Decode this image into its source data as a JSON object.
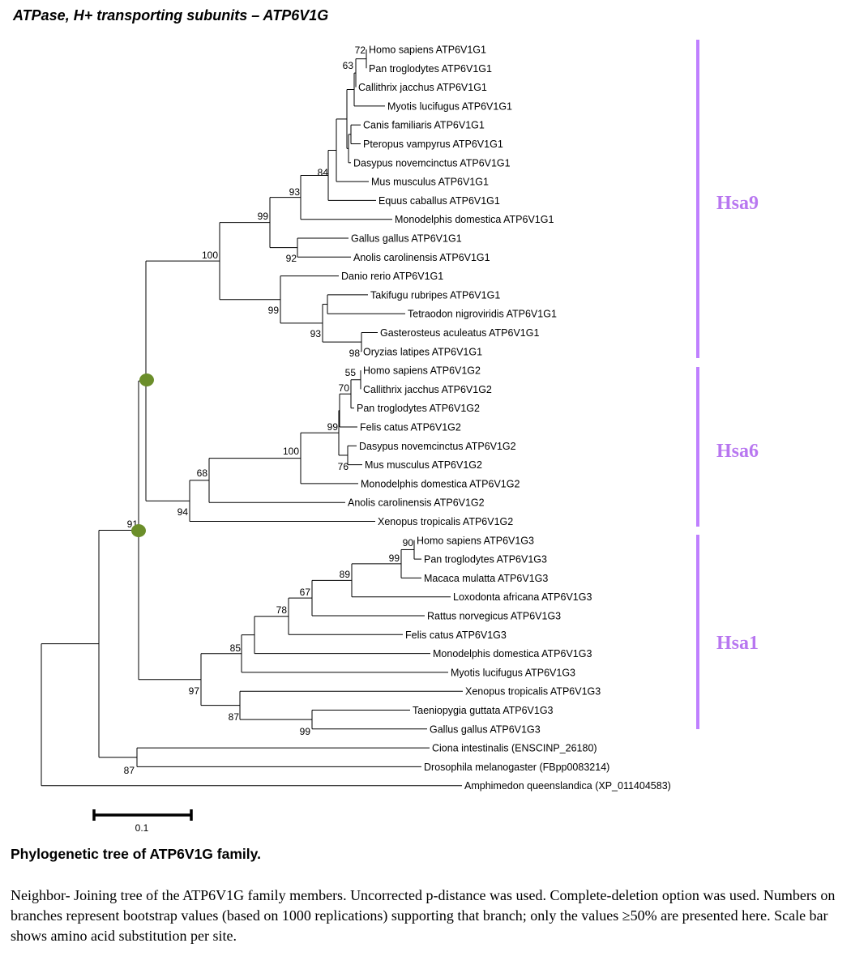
{
  "title": "ATPase, H+ transporting subunits – ATP6V1G",
  "colors": {
    "clade_bar": "#bf80ff",
    "clade_label": "#b877f0",
    "node_marker": "#6b8e2a",
    "line": "#000000"
  },
  "tree": {
    "taxa": [
      "Homo sapiens ATP6V1G1",
      "Pan troglodytes ATP6V1G1",
      "Callithrix jacchus ATP6V1G1",
      "Myotis lucifugus ATP6V1G1",
      "Canis familiaris ATP6V1G1",
      "Pteropus vampyrus ATP6V1G1",
      "Dasypus novemcinctus ATP6V1G1",
      "Mus musculus ATP6V1G1",
      "Equus caballus ATP6V1G1",
      "Monodelphis domestica ATP6V1G1",
      "Gallus gallus ATP6V1G1",
      "Anolis carolinensis ATP6V1G1",
      "Danio rerio ATP6V1G1",
      "Takifugu rubripes ATP6V1G1",
      "Tetraodon nigroviridis ATP6V1G1",
      "Gasterosteus aculeatus ATP6V1G1",
      "Oryzias latipes ATP6V1G1",
      "Homo sapiens ATP6V1G2",
      "Callithrix jacchus ATP6V1G2",
      "Pan troglodytes ATP6V1G2",
      "Felis catus ATP6V1G2",
      "Dasypus novemcinctus ATP6V1G2",
      "Mus musculus ATP6V1G2",
      "Monodelphis domestica ATP6V1G2",
      "Anolis carolinensis ATP6V1G2",
      "Xenopus tropicalis ATP6V1G2",
      "Homo sapiens ATP6V1G3",
      "Pan troglodytes ATP6V1G3",
      "Macaca mulatta ATP6V1G3",
      "Loxodonta africana ATP6V1G3",
      "Rattus norvegicus ATP6V1G3",
      "Felis catus ATP6V1G3",
      "Monodelphis domestica ATP6V1G3",
      "Myotis lucifugus ATP6V1G3",
      "Xenopus tropicalis ATP6V1G3",
      "Taeniopygia guttata ATP6V1G3",
      "Gallus gallus ATP6V1G3",
      "Ciona intestinalis (ENSCINP_26180)",
      "Drosophila melanogaster (FBpp0083214)",
      "Amphimedon queenslandica (XP_011404583)"
    ],
    "bootstrap": [
      "72",
      "63",
      "84",
      "93",
      "99",
      "100",
      "92",
      "99",
      "93",
      "98",
      "55",
      "70",
      "99",
      "100",
      "76",
      "68",
      "94",
      "91",
      "90",
      "99",
      "89",
      "67",
      "78",
      "85",
      "97",
      "87",
      "99",
      "87"
    ],
    "clades": [
      "Hsa9",
      "Hsa6",
      "Hsa1"
    ],
    "scale_label": "0.1"
  },
  "caption": {
    "title": "Phylogenetic tree of ATP6V1G family.",
    "text": "Neighbor- Joining  tree of the ATP6V1G family members. Uncorrected p-distance was used. Complete-deletion option was used. Numbers on branches represent bootstrap values (based on 1000 replications) supporting that branch; only the values ≥50% are presented here. Scale bar shows amino acid substitution per site."
  }
}
